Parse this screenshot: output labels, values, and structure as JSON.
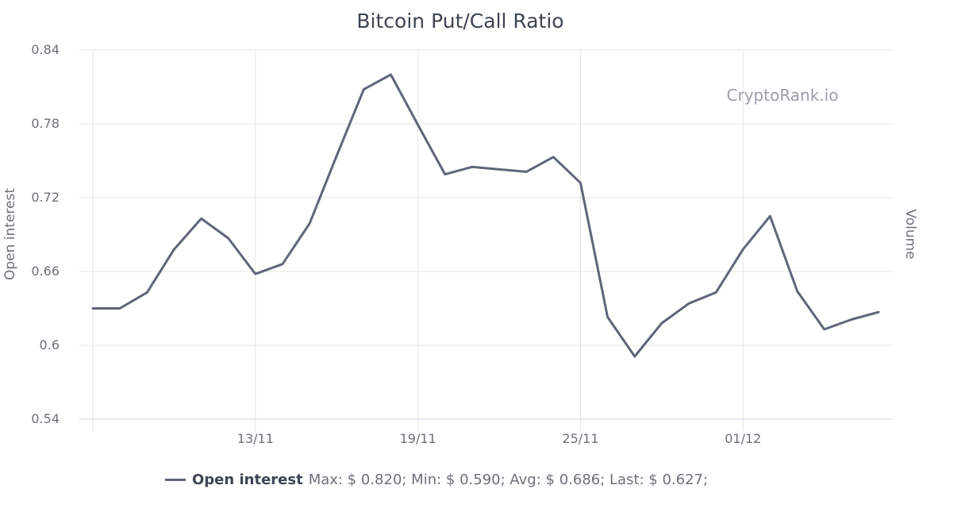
{
  "chart_data": {
    "type": "line",
    "title": "Bitcoin Put/Call Ratio",
    "ylabel": "Open interest",
    "ylabel_right": "Volume",
    "watermark": "CryptoRank.io",
    "ylim": [
      0.54,
      0.84
    ],
    "yticks": [
      "0.84",
      "0.78",
      "0.72",
      "0.66",
      "0.6",
      "0.54"
    ],
    "xticks": [
      {
        "label": "13/11",
        "index": 6
      },
      {
        "label": "19/11",
        "index": 12
      },
      {
        "label": "25/11",
        "index": 18
      },
      {
        "label": "01/12",
        "index": 24
      }
    ],
    "grid": true,
    "legend_position": "bottom",
    "series": [
      {
        "name": "Open interest",
        "color": "#5f6678",
        "values": [
          0.63,
          0.63,
          0.643,
          0.678,
          0.703,
          0.687,
          0.658,
          0.666,
          0.699,
          0.754,
          0.808,
          0.82,
          0.779,
          0.739,
          0.745,
          0.743,
          0.741,
          0.753,
          0.732,
          0.623,
          0.591,
          0.618,
          0.634,
          0.643,
          0.678,
          0.705,
          0.644,
          0.613,
          0.621,
          0.627
        ]
      }
    ]
  },
  "legend": {
    "name": "Open interest",
    "stats": "Max: $ 0.820; Min: $ 0.590; Avg: $ 0.686; Last: $ 0.627;"
  }
}
